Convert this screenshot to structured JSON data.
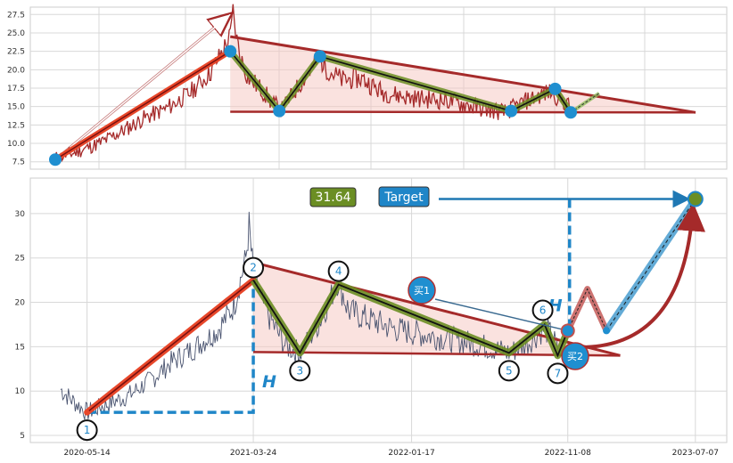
{
  "chart_data": [
    {
      "type": "line",
      "panel": "top",
      "x_range": [
        "2020-05-14",
        "2023-07-07"
      ],
      "ylim": [
        6.5,
        28.5
      ],
      "yticks": [
        "7.5",
        "10.0",
        "12.5",
        "15.0",
        "17.5",
        "20.0",
        "22.5",
        "25.0",
        "27.5"
      ],
      "grid": true,
      "series": [
        {
          "role": "price",
          "color": "#a52a2a",
          "points": [
            [
              "2020-05-14",
              8.0
            ],
            [
              "2020-06-20",
              8.8
            ],
            [
              "2020-08-01",
              10.0
            ],
            [
              "2020-09-10",
              11.6
            ],
            [
              "2020-10-20",
              13.4
            ],
            [
              "2020-12-01",
              14.8
            ],
            [
              "2021-01-10",
              16.8
            ],
            [
              "2021-02-15",
              19.5
            ],
            [
              "2021-03-10",
              22.5
            ],
            [
              "2021-03-24",
              24.5
            ],
            [
              "2021-03-29",
              27.8
            ],
            [
              "2021-04-05",
              24.0
            ],
            [
              "2021-04-12",
              21.5
            ],
            [
              "2021-04-25",
              19.0
            ],
            [
              "2021-05-20",
              17.2
            ],
            [
              "2021-06-10",
              15.3
            ],
            [
              "2021-06-25",
              14.6
            ],
            [
              "2021-07-15",
              16.8
            ],
            [
              "2021-08-10",
              19.5
            ],
            [
              "2021-09-01",
              21.5
            ],
            [
              "2021-09-15",
              20.0
            ],
            [
              "2021-10-10",
              18.6
            ],
            [
              "2021-11-15",
              18.8
            ],
            [
              "2021-12-20",
              17.0
            ],
            [
              "2022-02-10",
              16.2
            ],
            [
              "2022-04-20",
              15.8
            ],
            [
              "2022-06-15",
              14.8
            ],
            [
              "2022-07-30",
              14.2
            ],
            [
              "2022-08-30",
              15.5
            ],
            [
              "2022-09-30",
              16.5
            ],
            [
              "2022-10-20",
              17.0
            ],
            [
              "2022-11-08",
              16.0
            ],
            [
              "2022-11-25",
              14.8
            ]
          ]
        },
        {
          "role": "trend-up",
          "color": "#e8472a",
          "points": [
            [
              "2020-05-14",
              7.8
            ],
            [
              "2021-03-24",
              22.5
            ]
          ]
        },
        {
          "role": "zigzag",
          "color": "#6b8e23",
          "points": [
            [
              "2021-03-24",
              22.5
            ],
            [
              "2021-06-20",
              14.4
            ],
            [
              "2021-09-01",
              21.8
            ],
            [
              "2022-08-10",
              14.4
            ],
            [
              "2022-10-28",
              17.4
            ],
            [
              "2022-11-25",
              14.2
            ]
          ]
        },
        {
          "role": "projection",
          "color": "#8fbc5a",
          "points": [
            [
              "2022-11-25",
              14.2
            ],
            [
              "2023-01-15",
              16.8
            ]
          ]
        }
      ],
      "triangle": {
        "upper": [
          [
            "2021-03-24",
            24.5
          ],
          [
            "2023-07-07",
            14.2
          ]
        ],
        "lower": [
          [
            "2021-03-24",
            14.3
          ],
          [
            "2023-07-07",
            14.2
          ]
        ]
      },
      "arrow": {
        "from": [
          "2020-05-14",
          7.8
        ],
        "to": [
          "2021-03-24",
          27.5
        ]
      }
    },
    {
      "type": "line",
      "panel": "bottom",
      "x_range": [
        "2020-03-15",
        "2023-08-10"
      ],
      "ylim": [
        4.2,
        34.0
      ],
      "yticks": [
        "5",
        "10",
        "15",
        "20",
        "25",
        "30"
      ],
      "xticks": [
        "2020-05-14",
        "2021-03-24",
        "2022-01-17",
        "2022-11-08",
        "2023-07-07"
      ],
      "grid": true,
      "series": [
        {
          "role": "price",
          "color": "#4a5470",
          "points": [
            [
              "2020-03-25",
              10.2
            ],
            [
              "2020-04-15",
              9.0
            ],
            [
              "2020-05-14",
              7.6
            ],
            [
              "2020-06-20",
              8.5
            ],
            [
              "2020-08-01",
              9.5
            ],
            [
              "2020-09-10",
              11.2
            ],
            [
              "2020-10-20",
              13.2
            ],
            [
              "2020-12-01",
              14.8
            ],
            [
              "2021-01-15",
              16.8
            ],
            [
              "2021-02-15",
              19.5
            ],
            [
              "2021-03-10",
              25.0
            ],
            [
              "2021-03-16",
              28.5
            ],
            [
              "2021-03-24",
              23.0
            ],
            [
              "2021-04-10",
              20.0
            ],
            [
              "2021-05-05",
              17.0
            ],
            [
              "2021-05-25",
              15.0
            ],
            [
              "2021-06-20",
              14.3
            ],
            [
              "2021-07-25",
              17.5
            ],
            [
              "2021-09-01",
              22.5
            ],
            [
              "2021-09-20",
              19.0
            ],
            [
              "2021-11-01",
              18.0
            ],
            [
              "2021-12-15",
              17.0
            ],
            [
              "2022-02-15",
              16.3
            ],
            [
              "2022-05-01",
              15.5
            ],
            [
              "2022-06-20",
              14.8
            ],
            [
              "2022-07-20",
              14.3
            ],
            [
              "2022-08-20",
              15.2
            ],
            [
              "2022-09-25",
              17.0
            ],
            [
              "2022-10-10",
              16.2
            ],
            [
              "2022-10-20",
              14.5
            ]
          ]
        },
        {
          "role": "trend-up",
          "color": "#e8472a",
          "points": [
            [
              "2020-05-14",
              7.6
            ],
            [
              "2021-03-24",
              22.5
            ]
          ]
        },
        {
          "role": "zigzag",
          "color": "#6b8e23",
          "points": [
            [
              "2021-03-24",
              22.5
            ],
            [
              "2021-06-20",
              14.3
            ],
            [
              "2021-09-01",
              22.0
            ],
            [
              "2022-07-20",
              14.3
            ],
            [
              "2022-09-25",
              17.5
            ],
            [
              "2022-10-20",
              14.0
            ],
            [
              "2022-11-08",
              16.8
            ]
          ]
        },
        {
          "role": "projection",
          "color": "#c0504d",
          "points": [
            [
              "2022-11-08",
              16.8
            ],
            [
              "2022-12-15",
              21.5
            ],
            [
              "2023-01-20",
              16.8
            ]
          ]
        },
        {
          "role": "target-path",
          "color": "#2f8fc8",
          "points": [
            [
              "2023-01-20",
              16.8
            ],
            [
              "2023-07-07",
              31.64
            ]
          ]
        }
      ],
      "triangle": {
        "upper": [
          [
            "2021-03-24",
            24.5
          ],
          [
            "2023-02-15",
            14.0
          ]
        ],
        "lower": [
          [
            "2021-03-24",
            14.4
          ],
          [
            "2023-02-15",
            14.0
          ]
        ]
      },
      "pivots": [
        {
          "label": "1",
          "x": "2020-05-14",
          "y": 7.6
        },
        {
          "label": "2",
          "x": "2021-03-24",
          "y": 22.5
        },
        {
          "label": "3",
          "x": "2021-06-20",
          "y": 14.3
        },
        {
          "label": "4",
          "x": "2021-09-01",
          "y": 22.0
        },
        {
          "label": "5",
          "x": "2022-07-20",
          "y": 14.3
        },
        {
          "label": "6",
          "x": "2022-09-25",
          "y": 17.5
        },
        {
          "label": "7",
          "x": "2022-10-20",
          "y": 14.0
        }
      ],
      "annotations": {
        "height_label": "H",
        "value_badge": "31.64",
        "target_label": "Target",
        "buy1_label": "买1",
        "buy2_label": "买2",
        "target_value": 31.64
      }
    }
  ]
}
